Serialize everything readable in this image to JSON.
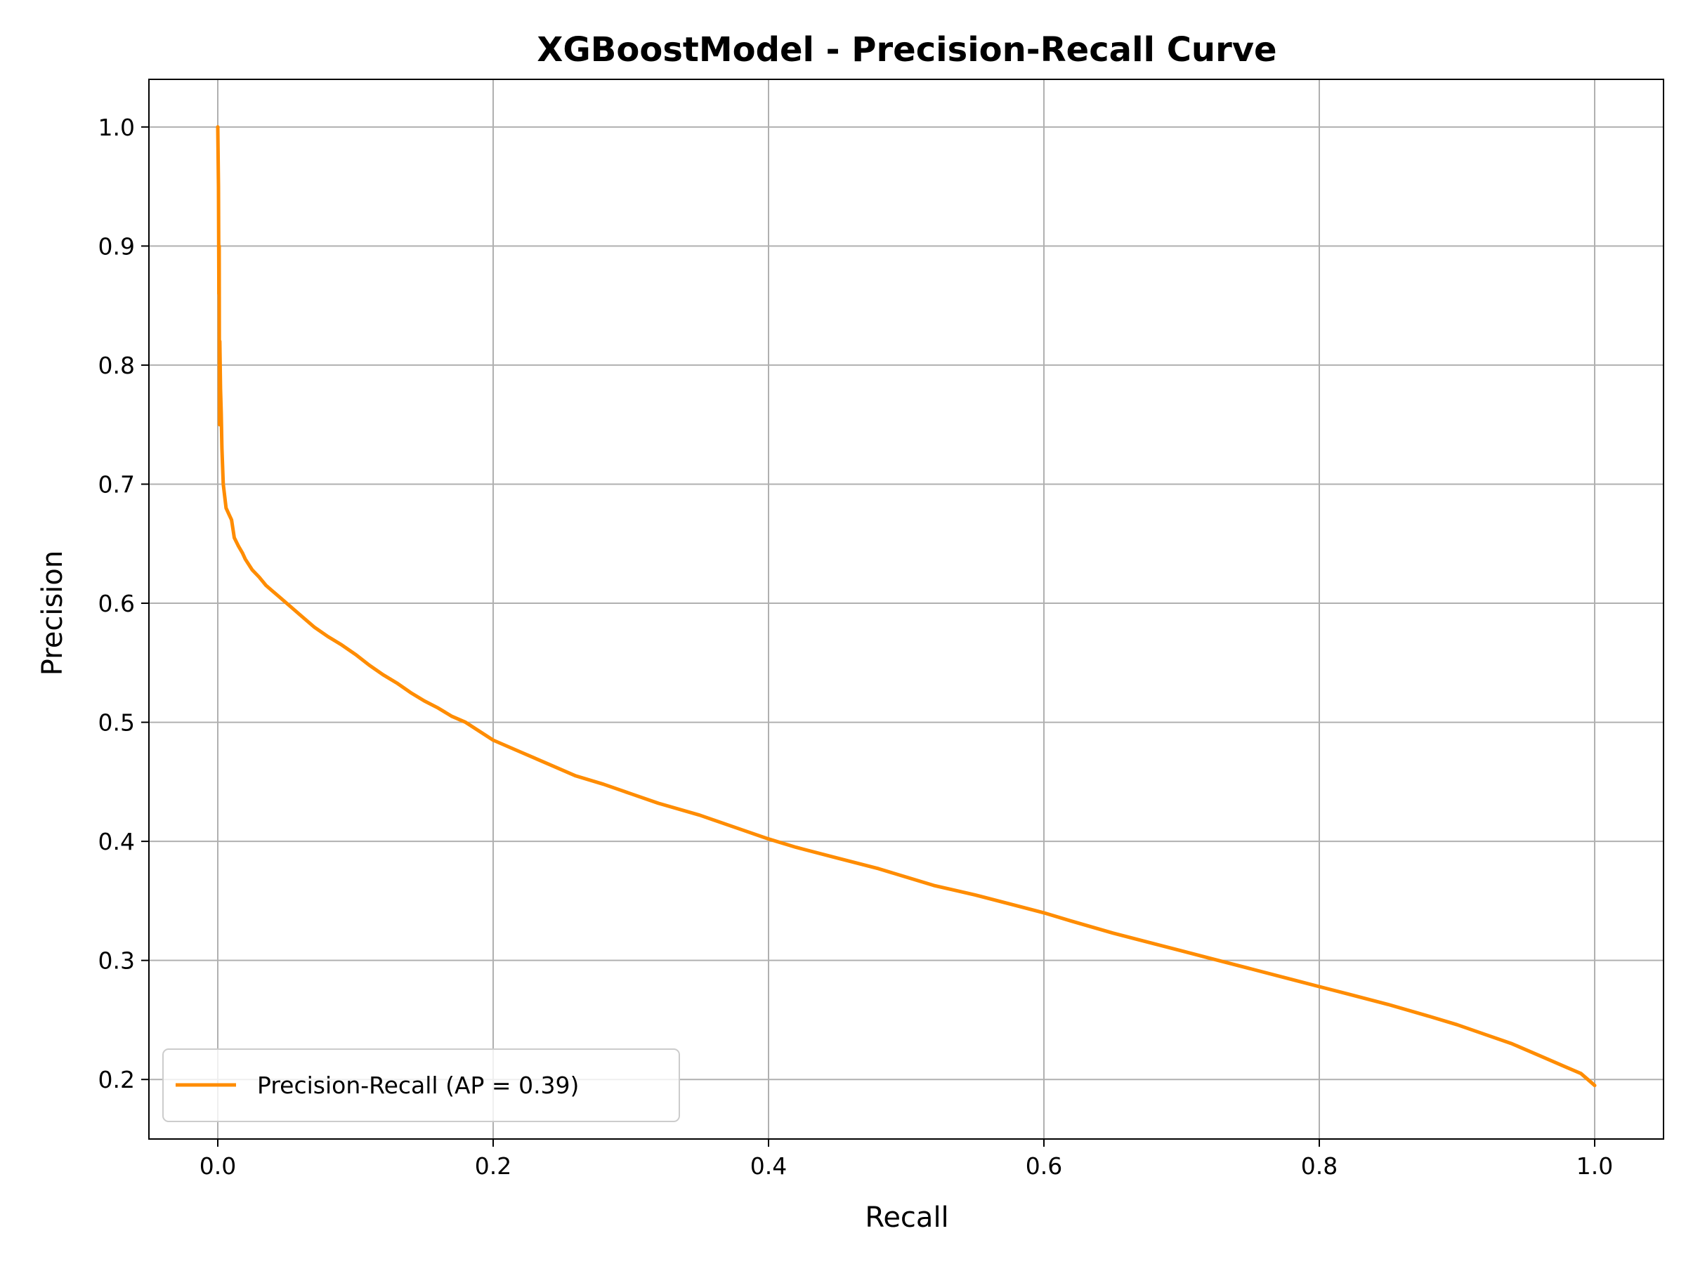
{
  "chart_data": {
    "type": "line",
    "title": "XGBoostModel - Precision-Recall Curve",
    "xlabel": "Recall",
    "ylabel": "Precision",
    "xlim": [
      -0.05,
      1.05
    ],
    "ylim": [
      0.15,
      1.04
    ],
    "xticks": [
      0.0,
      0.2,
      0.4,
      0.6,
      0.8,
      1.0
    ],
    "xtick_labels": [
      "0.0",
      "0.2",
      "0.4",
      "0.6",
      "0.8",
      "1.0"
    ],
    "yticks": [
      0.2,
      0.3,
      0.4,
      0.5,
      0.6,
      0.7,
      0.8,
      0.9,
      1.0
    ],
    "ytick_labels": [
      "0.2",
      "0.3",
      "0.4",
      "0.5",
      "0.6",
      "0.7",
      "0.8",
      "0.9",
      "1.0"
    ],
    "grid": true,
    "legend_position": "lower-left",
    "series": [
      {
        "name": "Precision-Recall (AP = 0.39)",
        "color": "#ff8c00",
        "x": [
          0.0,
          0.0005,
          0.0008,
          0.001,
          0.0012,
          0.0015,
          0.002,
          0.0025,
          0.003,
          0.004,
          0.005,
          0.006,
          0.008,
          0.01,
          0.012,
          0.015,
          0.018,
          0.02,
          0.025,
          0.03,
          0.035,
          0.04,
          0.045,
          0.05,
          0.06,
          0.07,
          0.08,
          0.09,
          0.1,
          0.11,
          0.12,
          0.13,
          0.14,
          0.15,
          0.16,
          0.17,
          0.18,
          0.2,
          0.22,
          0.24,
          0.26,
          0.28,
          0.3,
          0.32,
          0.35,
          0.38,
          0.4,
          0.42,
          0.45,
          0.48,
          0.5,
          0.52,
          0.55,
          0.58,
          0.6,
          0.62,
          0.65,
          0.68,
          0.7,
          0.72,
          0.75,
          0.78,
          0.8,
          0.82,
          0.85,
          0.88,
          0.9,
          0.92,
          0.94,
          0.96,
          0.97,
          0.98,
          0.99,
          0.995,
          0.998,
          1.0
        ],
        "y": [
          1.0,
          0.95,
          0.86,
          0.9,
          0.75,
          0.82,
          0.78,
          0.76,
          0.73,
          0.7,
          0.69,
          0.68,
          0.675,
          0.67,
          0.655,
          0.648,
          0.642,
          0.637,
          0.628,
          0.622,
          0.615,
          0.61,
          0.605,
          0.6,
          0.59,
          0.58,
          0.572,
          0.565,
          0.557,
          0.548,
          0.54,
          0.533,
          0.525,
          0.518,
          0.512,
          0.505,
          0.5,
          0.485,
          0.475,
          0.465,
          0.455,
          0.448,
          0.44,
          0.432,
          0.422,
          0.41,
          0.402,
          0.395,
          0.386,
          0.377,
          0.37,
          0.363,
          0.355,
          0.346,
          0.34,
          0.333,
          0.323,
          0.314,
          0.308,
          0.302,
          0.293,
          0.284,
          0.278,
          0.272,
          0.263,
          0.253,
          0.246,
          0.238,
          0.23,
          0.22,
          0.215,
          0.21,
          0.205,
          0.2,
          0.197,
          0.195
        ]
      }
    ]
  }
}
